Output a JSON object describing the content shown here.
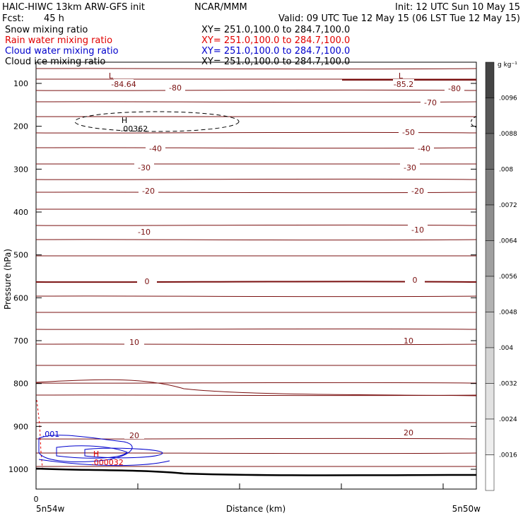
{
  "header": {
    "line1_left": "HAIC-HIWC 13km ARW-GFS init",
    "line1_mid": "NCAR/MMM",
    "line1_right": "Init: 12 UTC Sun 10 May 15",
    "line2_left": "Fcst:",
    "line2_fcst": "45 h",
    "line2_right": "Valid: 09 UTC Tue 12 May 15 (06 LST Tue 12 May 15)",
    "fields": [
      {
        "name": "Snow mixing ratio",
        "xy": "XY= 251.0,100.0 to 284.7,100.0",
        "color": "#000000"
      },
      {
        "name": "Rain water mixing ratio",
        "xy": "XY= 251.0,100.0 to 284.7,100.0",
        "color": "#e00000"
      },
      {
        "name": "Cloud water mixing ratio",
        "xy": "XY= 251.0,100.0 to 284.7,100.0",
        "color": "#0000cc"
      },
      {
        "name": "Cloud ice mixing ratio",
        "xy": "XY= 251.0,100.0 to 284.7,100.0",
        "color": "#000000"
      }
    ]
  },
  "chart_data": {
    "type": "cross-section contour",
    "ylabel": "Pressure (hPa)",
    "xlabel": "Distance (km)",
    "x_tick_label": "0",
    "x_start_label": "5n54w",
    "x_end_label": "5n50w",
    "y_ticks": [
      100,
      200,
      300,
      400,
      500,
      600,
      700,
      800,
      900,
      1000
    ],
    "ylim": [
      50,
      1050
    ],
    "temperature_contours": {
      "color": "#7a1010",
      "labeled_values": [
        "-84.64",
        "-80",
        "-70",
        "-50",
        "-40",
        "-30",
        "-20",
        "-10",
        "0",
        "10",
        "20"
      ],
      "low_marker": "L",
      "low_values": [
        "-84.64",
        "-85.2"
      ]
    },
    "snow_contour": {
      "max_marker": "H",
      "max_value": ".00362"
    },
    "rain_contour": {
      "max_marker": "H",
      "max_value": ".000032"
    },
    "cloud_water_contour": {
      "label": ".001"
    },
    "colorbar": {
      "unit": "g kg⁻¹",
      "ticks": [
        ".0096",
        ".0088",
        ".008",
        ".0072",
        ".0064",
        ".0056",
        ".0048",
        ".004",
        ".0032",
        ".0024",
        ".0016"
      ],
      "colors": [
        "#444444",
        "#585858",
        "#6a6a6a",
        "#7c7c7c",
        "#8e8e8e",
        "#a0a0a0",
        "#b2b2b2",
        "#c4c4c4",
        "#d4d4d4",
        "#e2e2e2",
        "#eeeeee",
        "#ffffff"
      ]
    }
  }
}
